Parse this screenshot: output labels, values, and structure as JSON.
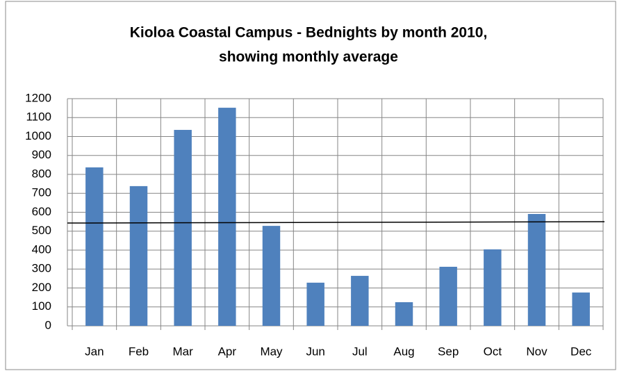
{
  "chart_data": {
    "type": "bar",
    "title": [
      "Kioloa Coastal Campus - Bednights by month 2010,",
      "showing monthly average"
    ],
    "categories": [
      "Jan",
      "Feb",
      "Mar",
      "Apr",
      "May",
      "Jun",
      "Jul",
      "Aug",
      "Sep",
      "Oct",
      "Nov",
      "Dec"
    ],
    "values": [
      837,
      738,
      1035,
      1152,
      528,
      228,
      264,
      125,
      312,
      404,
      591,
      176
    ],
    "color": "#4f81bd",
    "reference_line": {
      "values": [
        543,
        550
      ],
      "color": "#000000"
    },
    "ylim": [
      0,
      1200
    ],
    "yticks": [
      0,
      100,
      200,
      300,
      400,
      500,
      600,
      700,
      800,
      900,
      1000,
      1100,
      1200
    ],
    "grid": true
  }
}
